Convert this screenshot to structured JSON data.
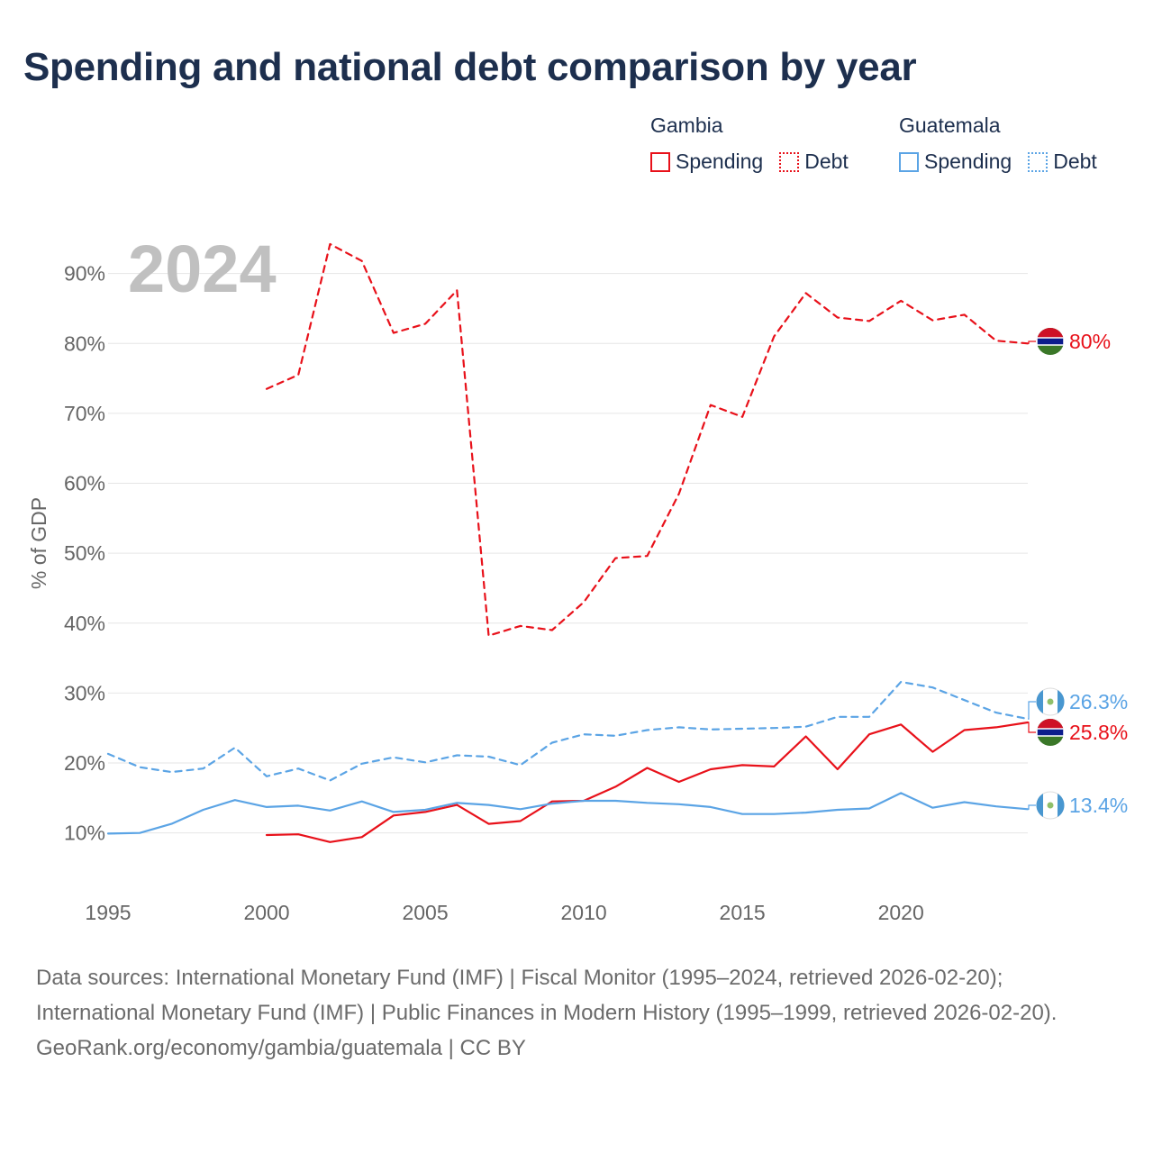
{
  "title": "Spending and national debt comparison by year",
  "legend": {
    "gambia": {
      "country": "Gambia",
      "spending": "Spending",
      "debt": "Debt"
    },
    "guatemala": {
      "country": "Guatemala",
      "spending": "Spending",
      "debt": "Debt"
    }
  },
  "colors": {
    "gambia": "#e8111a",
    "guatemala": "#5ba4e5",
    "grid": "#e6e6e6",
    "axis_text": "#666666",
    "year_watermark": "#c0c0c0"
  },
  "footer": {
    "sources": "Data sources: International Monetary Fund (IMF) | Fiscal Monitor (1995–2024, retrieved 2026-02-20); International Monetary Fund (IMF) | Public Finances in Modern History (1995–1999, retrieved 2026-02-20).",
    "credit": "GeoRank.org/economy/gambia/guatemala | CC BY"
  },
  "chart_data": {
    "type": "line",
    "title": "Spending and national debt comparison by year",
    "year_label": "2024",
    "xlabel": "",
    "ylabel": "% of GDP",
    "xlim": [
      1995,
      2024
    ],
    "ylim": [
      3,
      100
    ],
    "x_ticks": [
      1995,
      2000,
      2005,
      2010,
      2015,
      2020
    ],
    "x_tick_labels": [
      "1995",
      "2000",
      "2005",
      "2010",
      "2015",
      "2020"
    ],
    "y_ticks": [
      10,
      20,
      30,
      40,
      50,
      60,
      70,
      80,
      90
    ],
    "y_tick_labels": [
      "10%",
      "20%",
      "30%",
      "40%",
      "50%",
      "60%",
      "70%",
      "80%",
      "90%"
    ],
    "grid": true,
    "series": [
      {
        "name": "Gambia Debt",
        "country": "gambia",
        "style": "dashed",
        "end_label": "80%",
        "x": [
          2000,
          2001,
          2002,
          2003,
          2004,
          2005,
          2006,
          2007,
          2008,
          2009,
          2010,
          2011,
          2012,
          2013,
          2014,
          2015,
          2016,
          2017,
          2018,
          2019,
          2020,
          2021,
          2022,
          2023,
          2024
        ],
        "values": [
          73.5,
          75.5,
          94.2,
          91.8,
          81.5,
          82.8,
          87.6,
          38.2,
          39.6,
          39.0,
          43.0,
          49.3,
          49.6,
          58.5,
          71.2,
          69.5,
          81.0,
          87.2,
          83.7,
          83.2,
          86.1,
          83.3,
          84.1,
          80.4,
          80.0
        ]
      },
      {
        "name": "Gambia Spending",
        "country": "gambia",
        "style": "solid",
        "end_label": "25.8%",
        "x": [
          2000,
          2001,
          2002,
          2003,
          2004,
          2005,
          2006,
          2007,
          2008,
          2009,
          2010,
          2011,
          2012,
          2013,
          2014,
          2015,
          2016,
          2017,
          2018,
          2019,
          2020,
          2021,
          2022,
          2023,
          2024
        ],
        "values": [
          9.7,
          9.8,
          8.7,
          9.4,
          12.5,
          13.0,
          14.0,
          11.3,
          11.7,
          14.5,
          14.6,
          16.6,
          19.3,
          17.3,
          19.1,
          19.7,
          19.5,
          23.8,
          19.1,
          24.1,
          25.5,
          21.6,
          24.7,
          25.1,
          25.8
        ]
      },
      {
        "name": "Guatemala Debt",
        "country": "guatemala",
        "style": "dashed",
        "end_label": "26.3%",
        "x": [
          1995,
          1996,
          1997,
          1998,
          1999,
          2000,
          2001,
          2002,
          2003,
          2004,
          2005,
          2006,
          2007,
          2008,
          2009,
          2010,
          2011,
          2012,
          2013,
          2014,
          2015,
          2016,
          2017,
          2018,
          2019,
          2020,
          2021,
          2022,
          2023,
          2024
        ],
        "values": [
          21.3,
          19.4,
          18.7,
          19.2,
          22.2,
          18.1,
          19.2,
          17.5,
          19.9,
          20.8,
          20.1,
          21.1,
          20.9,
          19.7,
          22.9,
          24.1,
          23.9,
          24.7,
          25.1,
          24.8,
          24.9,
          25.0,
          25.2,
          26.6,
          26.6,
          31.6,
          30.8,
          29.0,
          27.2,
          26.3
        ]
      },
      {
        "name": "Guatemala Spending",
        "country": "guatemala",
        "style": "solid",
        "end_label": "13.4%",
        "x": [
          1995,
          1996,
          1997,
          1998,
          1999,
          2000,
          2001,
          2002,
          2003,
          2004,
          2005,
          2006,
          2007,
          2008,
          2009,
          2010,
          2011,
          2012,
          2013,
          2014,
          2015,
          2016,
          2017,
          2018,
          2019,
          2020,
          2021,
          2022,
          2023,
          2024
        ],
        "values": [
          9.9,
          10.0,
          11.3,
          13.3,
          14.7,
          13.7,
          13.9,
          13.2,
          14.5,
          13.0,
          13.3,
          14.3,
          14.0,
          13.4,
          14.2,
          14.6,
          14.6,
          14.3,
          14.1,
          13.7,
          12.7,
          12.7,
          12.9,
          13.3,
          13.5,
          15.7,
          13.6,
          14.4,
          13.8,
          13.4
        ]
      }
    ]
  }
}
